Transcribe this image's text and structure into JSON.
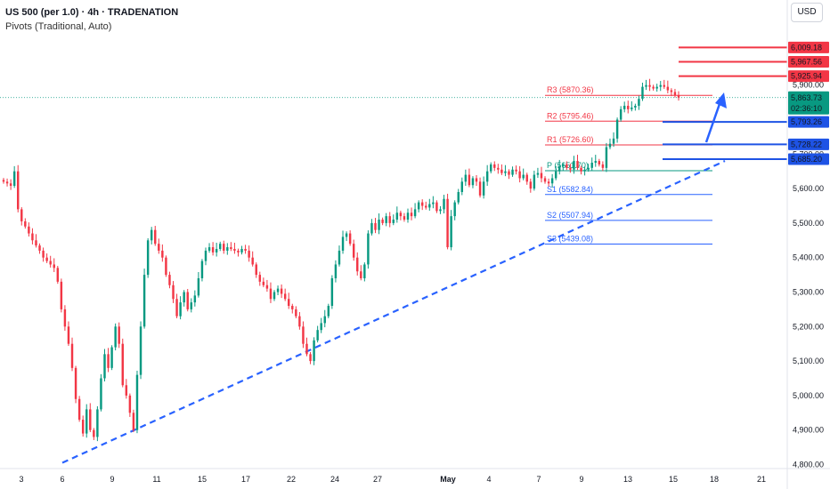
{
  "legend": {
    "symbol_line": "US 500 (per 1.0) · 4h · TRADENATION",
    "indicator_line": "Pivots (Traditional, Auto)"
  },
  "currency_button": "USD",
  "colors": {
    "up": "#089981",
    "down": "#f23645",
    "pivot_r": "#f23645",
    "pivot_s": "#2962ff",
    "pivot_p": "#089981",
    "trend": "#2962ff",
    "resistance_line": "#f23645",
    "support_line": "#1e53e5"
  },
  "chart_data": {
    "type": "candlestick",
    "timeframe": "4h",
    "x_ticks": [
      "3",
      "6",
      "9",
      "11",
      "15",
      "17",
      "22",
      "24",
      "27",
      "May",
      "4",
      "7",
      "9",
      "13",
      "15",
      "18",
      "21"
    ],
    "y_ticks": [
      "4,800.00",
      "4,900.00",
      "5,000.00",
      "5,100.00",
      "5,200.00",
      "5,300.00",
      "5,400.00",
      "5,500.00",
      "5,600.00",
      "5,700.00",
      "5,800.00",
      "5,900.00"
    ],
    "ylim": [
      4800,
      6030
    ],
    "last_price": "5,863.73",
    "countdown": "02:36:10",
    "pivots": [
      {
        "label": "R3 (5870.36)",
        "value": 5870.36,
        "kind": "r"
      },
      {
        "label": "R2 (5795.46)",
        "value": 5795.46,
        "kind": "r"
      },
      {
        "label": "R1 (5726.60)",
        "value": 5726.6,
        "kind": "r"
      },
      {
        "label": "P (5651.70)",
        "value": 5651.7,
        "kind": "p"
      },
      {
        "label": "S1 (5582.84)",
        "value": 5582.84,
        "kind": "s"
      },
      {
        "label": "S2 (5507.94)",
        "value": 5507.94,
        "kind": "s"
      },
      {
        "label": "S3 (5439.08)",
        "value": 5439.08,
        "kind": "s"
      }
    ],
    "resistance_levels": [
      "6,009.18",
      "5,967.56",
      "5,925.94"
    ],
    "support_levels": [
      "5,793.26",
      "5,728.22",
      "5,685.20"
    ],
    "trendline": {
      "from": [
        "6",
        4805
      ],
      "to": [
        "18",
        5680
      ]
    },
    "closes": [
      5620,
      5615,
      5608,
      5650,
      5540,
      5505,
      5490,
      5470,
      5450,
      5435,
      5420,
      5400,
      5390,
      5380,
      5370,
      5330,
      5250,
      5200,
      5150,
      5080,
      4990,
      4930,
      4890,
      4960,
      4900,
      4880,
      4960,
      5050,
      5120,
      5080,
      5140,
      5200,
      5150,
      5030,
      5000,
      4950,
      4900,
      5060,
      5200,
      5350,
      5450,
      5480,
      5440,
      5420,
      5400,
      5350,
      5320,
      5280,
      5230,
      5270,
      5300,
      5250,
      5270,
      5290,
      5340,
      5390,
      5420,
      5430,
      5415,
      5425,
      5440,
      5420,
      5430,
      5425,
      5420,
      5415,
      5425,
      5420,
      5400,
      5380,
      5350,
      5330,
      5320,
      5310,
      5280,
      5300,
      5310,
      5295,
      5280,
      5260,
      5250,
      5230,
      5200,
      5150,
      5120,
      5100,
      5160,
      5190,
      5210,
      5230,
      5260,
      5340,
      5380,
      5420,
      5460,
      5470,
      5440,
      5400,
      5360,
      5340,
      5380,
      5470,
      5500,
      5480,
      5510,
      5500,
      5520,
      5500,
      5510,
      5530,
      5520,
      5510,
      5530,
      5520,
      5540,
      5560,
      5550,
      5545,
      5555,
      5560,
      5535,
      5540,
      5570,
      5430,
      5520,
      5560,
      5590,
      5620,
      5640,
      5610,
      5630,
      5620,
      5580,
      5620,
      5650,
      5670,
      5660,
      5655,
      5645,
      5650,
      5640,
      5655,
      5650,
      5630,
      5640,
      5620,
      5600,
      5640,
      5645,
      5630,
      5620,
      5615,
      5630,
      5650,
      5665,
      5670,
      5660,
      5655,
      5680,
      5660,
      5650,
      5655,
      5660,
      5675,
      5680,
      5670,
      5660,
      5720,
      5730,
      5745,
      5800,
      5830,
      5840,
      5830,
      5835,
      5840,
      5860,
      5895,
      5900,
      5895,
      5890,
      5895,
      5900,
      5895,
      5885,
      5880,
      5870,
      5864
    ]
  }
}
